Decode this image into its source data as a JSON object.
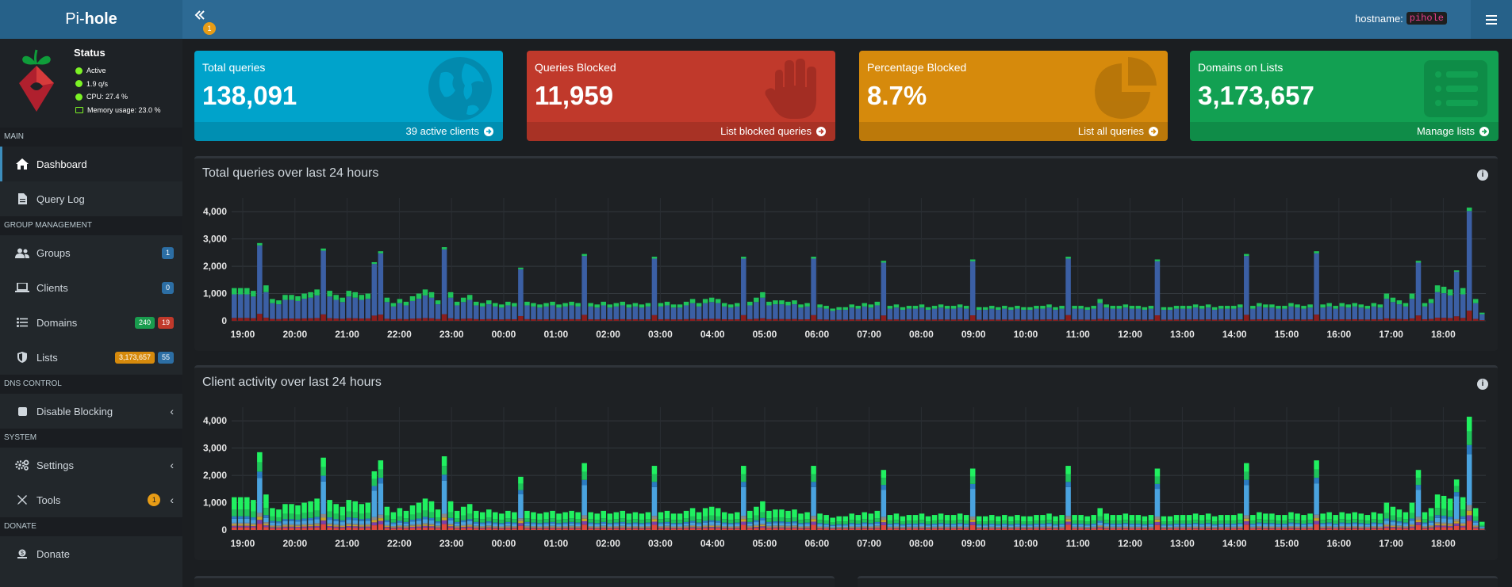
{
  "header": {
    "logo_prefix": "Pi-",
    "logo_bold": "hole",
    "toggle_badge": "1",
    "hostname_label": "hostname:",
    "hostname_value": "pihole"
  },
  "status": {
    "title": "Status",
    "active": "Active",
    "qps": "1.9 q/s",
    "cpu": "CPU: 27.4 %",
    "memory": "Memory usage: 23.0 %"
  },
  "sidebar": {
    "main_header": "MAIN",
    "dashboard": "Dashboard",
    "query_log": "Query Log",
    "group_header": "GROUP MANAGEMENT",
    "groups": "Groups",
    "groups_badge": "1",
    "clients": "Clients",
    "clients_badge": "0",
    "domains": "Domains",
    "domains_badge_allow": "240",
    "domains_badge_deny": "19",
    "lists": "Lists",
    "lists_badge_count": "3,173,657",
    "lists_badge_lists": "55",
    "dns_header": "DNS CONTROL",
    "disable_blocking": "Disable Blocking",
    "system_header": "SYSTEM",
    "settings": "Settings",
    "tools": "Tools",
    "tools_badge": "1",
    "donate_header": "DONATE",
    "donate": "Donate"
  },
  "cards": {
    "total": {
      "title": "Total queries",
      "value": "138,091",
      "footer": "39 active clients",
      "color": "#00a3cb"
    },
    "blocked": {
      "title": "Queries Blocked",
      "value": "11,959",
      "footer": "List blocked queries",
      "color": "#c0392b"
    },
    "percent": {
      "title": "Percentage Blocked",
      "value": "8.7%",
      "footer": "List all queries",
      "color": "#d68a0c"
    },
    "domains": {
      "title": "Domains on Lists",
      "value": "3,173,657",
      "footer": "Manage lists",
      "color": "#12a052"
    }
  },
  "panels": {
    "queries_title": "Total queries over last 24 hours",
    "clients_title": "Client activity over last 24 hours"
  },
  "chart_data": [
    {
      "type": "bar",
      "stacked": true,
      "title": "Total queries over last 24 hours",
      "ylim": [
        0,
        4500
      ],
      "yticks": [
        "0",
        "1,000",
        "2,000",
        "3,000",
        "4,000"
      ],
      "xticks": [
        "19:00",
        "20:00",
        "21:00",
        "22:00",
        "23:00",
        "00:00",
        "01:00",
        "02:00",
        "03:00",
        "04:00",
        "05:00",
        "06:00",
        "07:00",
        "08:00",
        "09:00",
        "10:00",
        "11:00",
        "12:00",
        "13:00",
        "14:00",
        "15:00",
        "16:00",
        "17:00",
        "18:00"
      ],
      "series_colors": [
        "#8b1e1e",
        "#3b5fa4",
        "#1fc35a"
      ],
      "totals": [
        1200,
        1200,
        1200,
        1100,
        2850,
        1300,
        800,
        750,
        950,
        950,
        900,
        1000,
        1050,
        1150,
        2650,
        1100,
        950,
        850,
        1100,
        1050,
        950,
        1000,
        2150,
        2550,
        850,
        650,
        800,
        700,
        900,
        1000,
        1150,
        1050,
        750,
        2700,
        1050,
        700,
        850,
        950,
        700,
        650,
        750,
        650,
        600,
        700,
        650,
        1950,
        700,
        650,
        600,
        650,
        700,
        600,
        650,
        700,
        650,
        2450,
        650,
        600,
        700,
        600,
        650,
        700,
        600,
        650,
        600,
        650,
        2350,
        650,
        700,
        600,
        600,
        700,
        800,
        650,
        800,
        850,
        800,
        650,
        600,
        650,
        2350,
        700,
        850,
        1050,
        700,
        750,
        750,
        700,
        750,
        600,
        650,
        2350,
        600,
        550,
        450,
        500,
        500,
        600,
        550,
        650,
        600,
        700,
        2200,
        550,
        600,
        500,
        550,
        550,
        600,
        500,
        550,
        600,
        550,
        550,
        600,
        550,
        2250,
        500,
        500,
        550,
        500,
        550,
        500,
        550,
        500,
        500,
        550,
        550,
        600,
        500,
        550,
        2350,
        550,
        550,
        500,
        550,
        800,
        600,
        550,
        550,
        600,
        550,
        550,
        500,
        550,
        2250,
        500,
        500,
        550,
        550,
        550,
        600,
        550,
        600,
        500,
        550,
        550,
        550,
        600,
        2450,
        550,
        650,
        600,
        600,
        550,
        550,
        650,
        600,
        550,
        600,
        2550,
        600,
        650,
        550,
        650,
        600,
        650,
        600,
        550,
        650,
        600,
        1000,
        850,
        750,
        650,
        1000,
        2200,
        650,
        800,
        1300,
        1250,
        1150,
        1850,
        1200,
        4150,
        800,
        300
      ],
      "blocked_share": 0.09,
      "allowed_share": 0.72
    },
    {
      "type": "bar",
      "stacked": true,
      "title": "Client activity over last 24 hours",
      "ylim": [
        0,
        4500
      ],
      "yticks": [
        "0",
        "1,000",
        "2,000",
        "3,000",
        "4,000"
      ],
      "xticks": [
        "19:00",
        "20:00",
        "21:00",
        "22:00",
        "23:00",
        "00:00",
        "01:00",
        "02:00",
        "03:00",
        "04:00",
        "05:00",
        "06:00",
        "07:00",
        "08:00",
        "09:00",
        "10:00",
        "11:00",
        "12:00",
        "13:00",
        "14:00",
        "15:00",
        "16:00",
        "17:00",
        "18:00"
      ],
      "series_colors": [
        "#e0473d",
        "#7b3fa8",
        "#c9a227",
        "#8a8a8a",
        "#4aa3df",
        "#2a7bc1",
        "#1fc35a",
        "#20f060"
      ],
      "totals": [
        1200,
        1200,
        1200,
        1100,
        2850,
        1300,
        800,
        750,
        950,
        950,
        900,
        1000,
        1050,
        1150,
        2650,
        1100,
        950,
        850,
        1100,
        1050,
        950,
        1000,
        2150,
        2550,
        850,
        650,
        800,
        700,
        900,
        1000,
        1150,
        1050,
        750,
        2700,
        1050,
        700,
        850,
        950,
        700,
        650,
        750,
        650,
        600,
        700,
        650,
        1950,
        700,
        650,
        600,
        650,
        700,
        600,
        650,
        700,
        650,
        2450,
        650,
        600,
        700,
        600,
        650,
        700,
        600,
        650,
        600,
        650,
        2350,
        650,
        700,
        600,
        600,
        700,
        800,
        650,
        800,
        850,
        800,
        650,
        600,
        650,
        2350,
        700,
        850,
        1050,
        700,
        750,
        750,
        700,
        750,
        600,
        650,
        2350,
        600,
        550,
        450,
        500,
        500,
        600,
        550,
        650,
        600,
        700,
        2200,
        550,
        600,
        500,
        550,
        550,
        600,
        500,
        550,
        600,
        550,
        550,
        600,
        550,
        2250,
        500,
        500,
        550,
        500,
        550,
        500,
        550,
        500,
        500,
        550,
        550,
        600,
        500,
        550,
        2350,
        550,
        550,
        500,
        550,
        800,
        600,
        550,
        550,
        600,
        550,
        550,
        500,
        550,
        2250,
        500,
        500,
        550,
        550,
        550,
        600,
        550,
        600,
        500,
        550,
        550,
        550,
        600,
        2450,
        550,
        650,
        600,
        600,
        550,
        550,
        650,
        600,
        550,
        600,
        2550,
        600,
        650,
        550,
        650,
        600,
        650,
        600,
        550,
        650,
        600,
        1000,
        850,
        750,
        650,
        1000,
        2200,
        650,
        800,
        1300,
        1250,
        1150,
        1850,
        1200,
        4150,
        800,
        300
      ]
    }
  ]
}
